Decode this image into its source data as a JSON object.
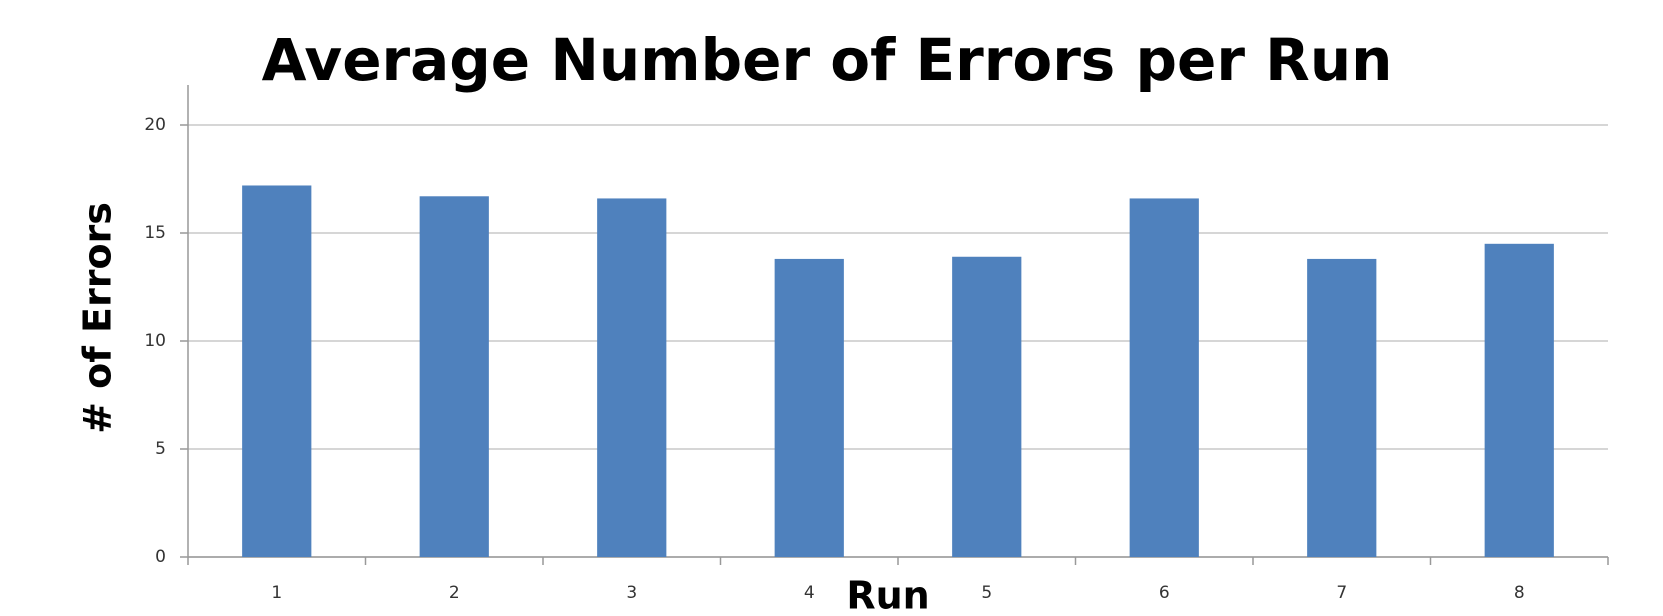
{
  "chart_data": {
    "type": "bar",
    "title": "Average Number of Errors per Run",
    "x_label": "Run",
    "y_label": "# of Errors",
    "categories": [
      "1",
      "2",
      "3",
      "4",
      "5",
      "6",
      "7",
      "8"
    ],
    "values": [
      17.2,
      16.7,
      16.6,
      13.8,
      13.9,
      16.6,
      13.8,
      14.5
    ],
    "color": "#4f81bd",
    "ylim": [
      0,
      20
    ],
    "yticks": [
      0,
      5,
      10,
      15,
      20
    ],
    "grid": true
  }
}
